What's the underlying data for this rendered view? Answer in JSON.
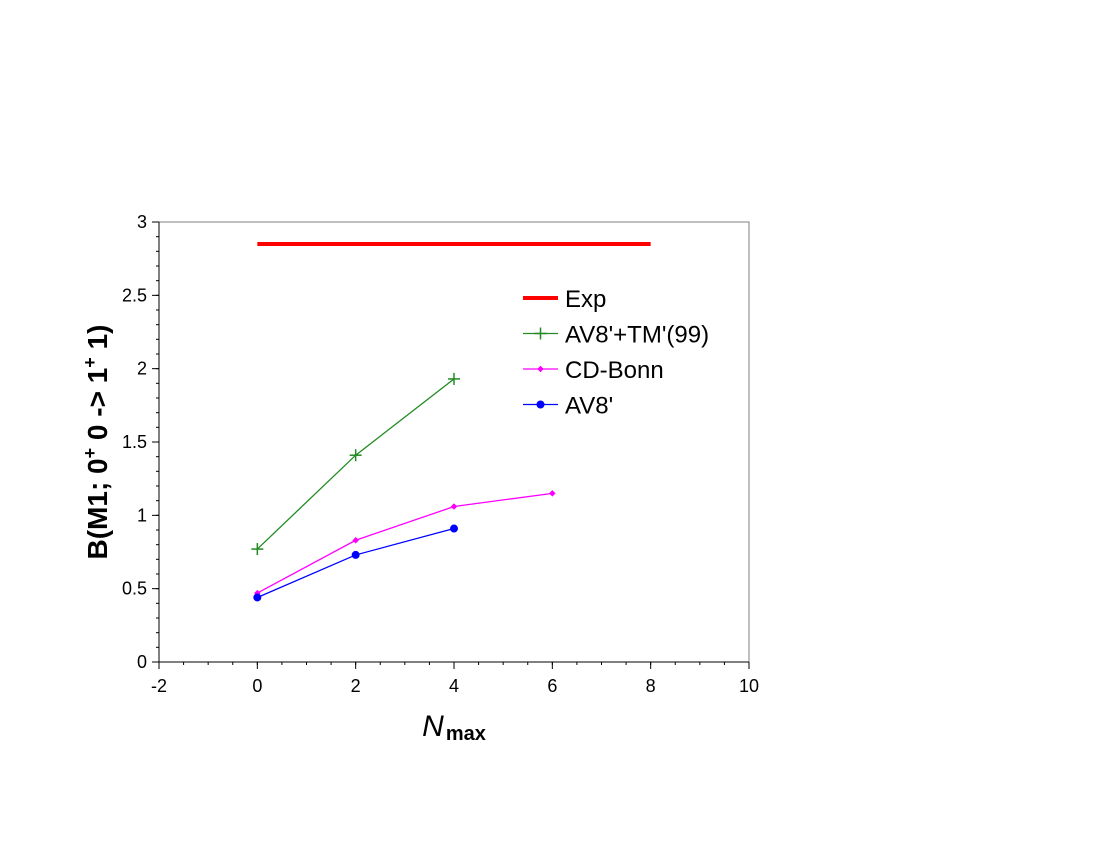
{
  "chart_data": {
    "type": "line",
    "xlabel": {
      "main": "N",
      "sub": "max"
    },
    "ylabel": {
      "parts": [
        "B(M1; 0",
        "+",
        " 0 -> 1",
        "+",
        " 1)"
      ]
    },
    "xlim": [
      -2,
      10
    ],
    "ylim": [
      0,
      3
    ],
    "x_ticks": [
      "-2",
      "0",
      "2",
      "4",
      "6",
      "8",
      "10"
    ],
    "y_ticks": [
      "0",
      "0.5",
      "1",
      "1.5",
      "2",
      "2.5",
      "3"
    ],
    "grid": false,
    "legend_position": "upper-right inside plot",
    "series": [
      {
        "name": "Exp",
        "color": "#ff0000",
        "marker": "none",
        "x": [
          0,
          8
        ],
        "y": [
          2.85,
          2.85
        ]
      },
      {
        "name": "AV8'+TM'(99)",
        "color": "#228b22",
        "marker": "plus",
        "x": [
          0,
          2,
          4
        ],
        "y": [
          0.77,
          1.41,
          1.93
        ]
      },
      {
        "name": "CD-Bonn",
        "color": "#ff00ff",
        "marker": "small-diamond",
        "x": [
          0,
          2,
          4,
          6
        ],
        "y": [
          0.47,
          0.83,
          1.06,
          1.15
        ]
      },
      {
        "name": "AV8'",
        "color": "#0000ff",
        "marker": "circle",
        "x": [
          0,
          2,
          4
        ],
        "y": [
          0.44,
          0.73,
          0.91
        ]
      }
    ]
  }
}
